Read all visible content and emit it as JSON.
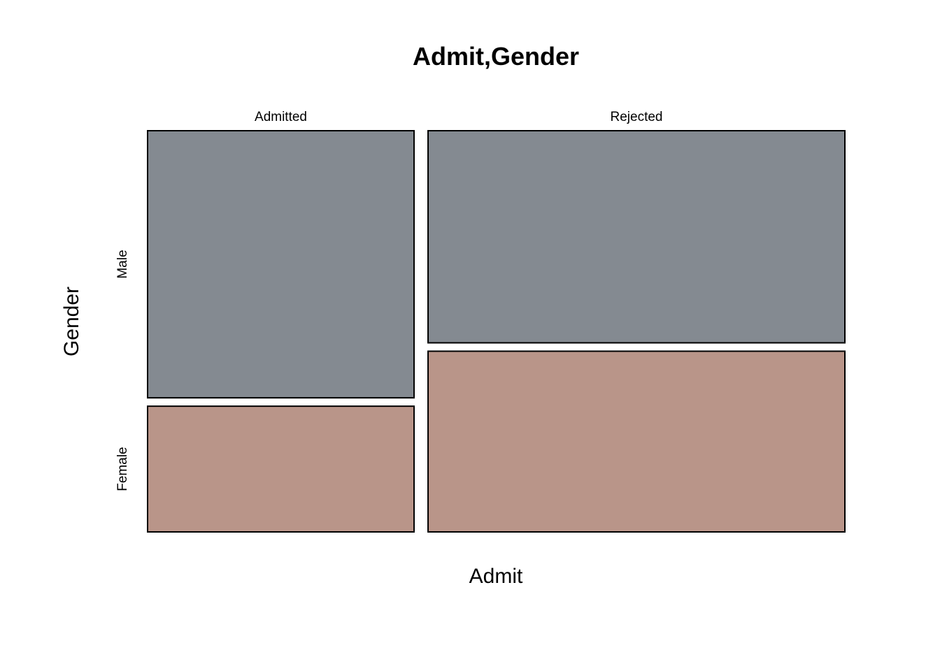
{
  "chart_data": {
    "type": "mosaic",
    "title": "Admit,Gender",
    "xlabel": "Admit",
    "ylabel": "Gender",
    "x_categories": [
      "Admitted",
      "Rejected"
    ],
    "y_categories": [
      "Male",
      "Female"
    ],
    "x_proportions": [
      0.39,
      0.61
    ],
    "conditional_proportions": {
      "Admitted": {
        "Male": 0.68,
        "Female": 0.32
      },
      "Rejected": {
        "Male": 0.54,
        "Female": 0.46
      }
    },
    "colors": {
      "Male": "#848a91",
      "Female": "#b99589"
    },
    "grid": false,
    "legend": "none"
  }
}
